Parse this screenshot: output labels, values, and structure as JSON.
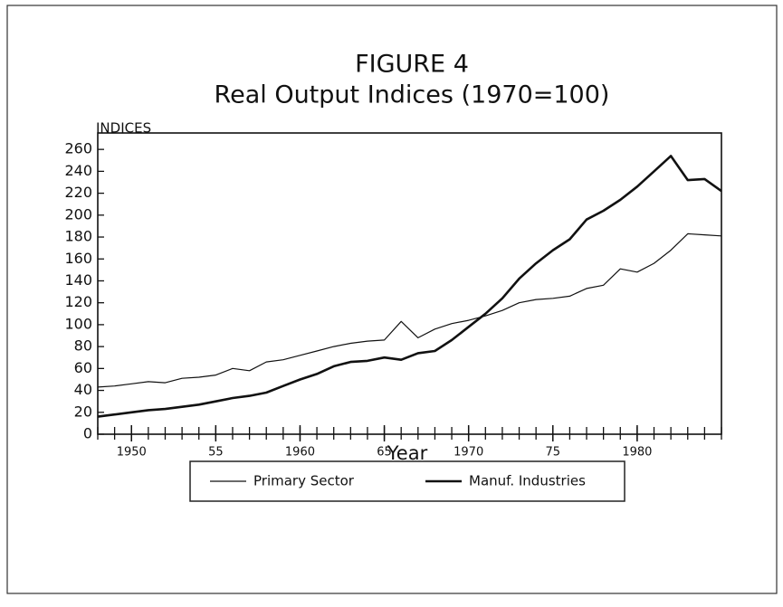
{
  "chart_data": {
    "type": "line",
    "title": "FIGURE 4",
    "subtitle": "Real Output Indices (1970=100)",
    "ylabel": "INDICES",
    "xlabel": "Year",
    "x": [
      1948,
      1949,
      1950,
      1951,
      1952,
      1953,
      1954,
      1955,
      1956,
      1957,
      1958,
      1959,
      1960,
      1961,
      1962,
      1963,
      1964,
      1965,
      1966,
      1967,
      1968,
      1969,
      1970,
      1971,
      1972,
      1973,
      1974,
      1975,
      1976,
      1977,
      1978,
      1979,
      1980,
      1981,
      1982,
      1983,
      1984,
      1985
    ],
    "series": [
      {
        "name": "Primary Sector",
        "color": "#111111",
        "linewidth": 1.2,
        "values": [
          43,
          44,
          46,
          48,
          47,
          51,
          52,
          54,
          60,
          58,
          66,
          68,
          72,
          76,
          80,
          83,
          85,
          86,
          103,
          88,
          96,
          101,
          104,
          108,
          113,
          120,
          123,
          124,
          126,
          133,
          136,
          151,
          148,
          156,
          168,
          183,
          182,
          181
        ]
      },
      {
        "name": "Manuf. Industries",
        "color": "#111111",
        "linewidth": 2.6,
        "values": [
          16,
          18,
          20,
          22,
          23,
          25,
          27,
          30,
          33,
          35,
          38,
          44,
          50,
          55,
          62,
          66,
          67,
          70,
          68,
          74,
          76,
          86,
          98,
          110,
          124,
          142,
          156,
          168,
          178,
          196,
          204,
          214,
          226,
          240,
          254,
          232,
          233,
          222
        ]
      }
    ],
    "xlim": [
      1948,
      1985
    ],
    "xticks": [
      1950,
      {
        "value": 1955,
        "label": "55"
      },
      1960,
      {
        "value": 1965,
        "label": "65"
      },
      1970,
      {
        "value": 1975,
        "label": "75"
      },
      1980
    ],
    "ylim": [
      0,
      275
    ],
    "yticks": [
      0,
      20,
      40,
      60,
      80,
      100,
      120,
      140,
      160,
      180,
      200,
      220,
      240,
      260
    ],
    "grid": false,
    "legend": "bottom"
  }
}
